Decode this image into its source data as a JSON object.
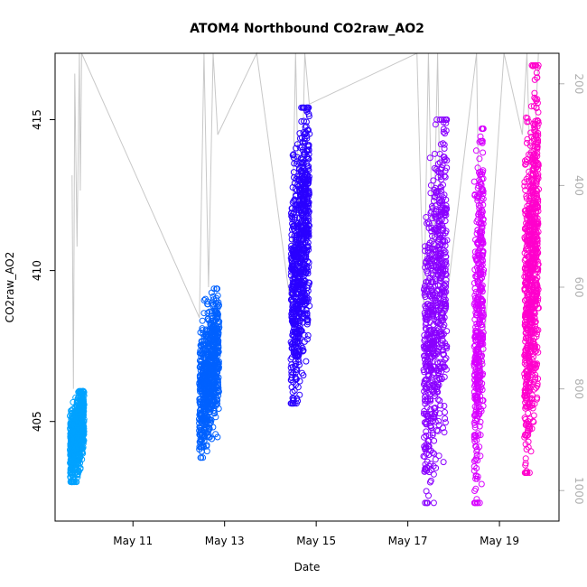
{
  "chart_data": {
    "type": "scatter",
    "title": "ATOM4 Northbound CO2raw_AO2",
    "xlabel": "Date",
    "ylabel": "CO2raw_AO2",
    "x_ticks": [
      "May 11",
      "May 13",
      "May 15",
      "May 17",
      "May 19"
    ],
    "x_tick_days": [
      11,
      13,
      15,
      17,
      19
    ],
    "xlim_days": [
      9.3,
      20.3
    ],
    "y_ticks": [
      405,
      410,
      415
    ],
    "ylim": [
      401.7,
      417.2
    ],
    "y2_ticks": [
      200,
      400,
      600,
      800,
      1000
    ],
    "y2lim": [
      1060,
      140
    ],
    "y2_color": "#b0b0b0",
    "y2_line_color": "#c8c8c8",
    "grid": false,
    "series": [
      {
        "color": "#00a2ff",
        "x_range": [
          9.63,
          9.93
        ],
        "y_range": [
          403.0,
          406.0
        ],
        "n": 700
      },
      {
        "color": "#0061ff",
        "x_range": [
          12.45,
          12.88
        ],
        "y_range": [
          403.8,
          409.4
        ],
        "n": 700
      },
      {
        "color": "#2a00ff",
        "x_range": [
          14.45,
          14.85
        ],
        "y_range": [
          405.6,
          415.4
        ],
        "n": 800
      },
      {
        "color": "#8a00ff",
        "x_range": [
          17.35,
          17.85
        ],
        "y_range": [
          402.3,
          415.0
        ],
        "n": 700
      },
      {
        "color": "#d800ff",
        "x_range": [
          18.45,
          18.65
        ],
        "y_range": [
          402.3,
          414.7
        ],
        "n": 450
      },
      {
        "color": "#ff00cc",
        "x_range": [
          19.55,
          19.85
        ],
        "y_range": [
          403.3,
          416.8
        ],
        "n": 800
      }
    ],
    "y2_series": {
      "name": "",
      "x": [
        9.67,
        9.7,
        9.73,
        9.78,
        9.83,
        9.85,
        9.88,
        12.45,
        12.55,
        12.65,
        12.75,
        12.85,
        13.7,
        14.45,
        14.55,
        14.65,
        14.75,
        14.85,
        17.2,
        17.35,
        17.45,
        17.55,
        17.65,
        17.75,
        18.5,
        18.6,
        19.1,
        19.5,
        19.6,
        19.7,
        19.85
      ],
      "y": [
        380,
        800,
        180,
        520,
        140,
        410,
        140,
        660,
        140,
        600,
        140,
        300,
        140,
        640,
        140,
        560,
        140,
        240,
        110,
        650,
        140,
        580,
        140,
        700,
        140,
        800,
        140,
        300,
        140,
        480,
        140
      ]
    }
  }
}
